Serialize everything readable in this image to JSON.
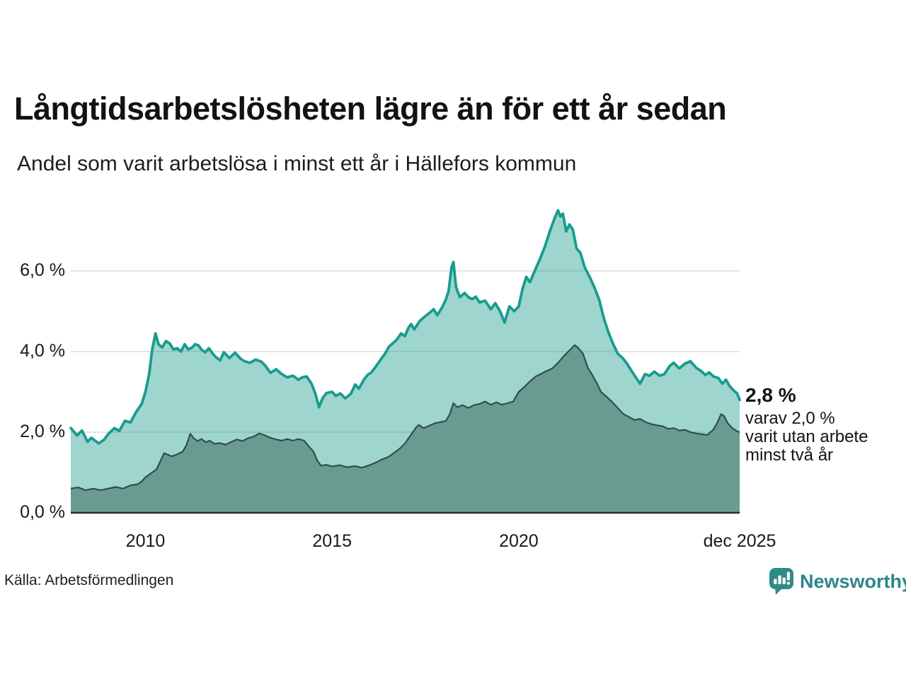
{
  "header": {
    "title": "Långtidsarbetslösheten lägre än för ett år sedan",
    "subtitle": "Andel som varit arbetslösa i minst ett år i Hällefors kommun"
  },
  "annotation": {
    "headline": "2,8 %",
    "lines": [
      "varav 2,0 %",
      "varit utan arbete",
      "minst två år"
    ]
  },
  "footer": {
    "source": "Källa: Arbetsförmedlingen",
    "brand": "Newsworthy"
  },
  "colors": {
    "accent_teal": "#189C8E",
    "area_light": "rgba(26,154,140,0.42)",
    "area_dark": "#6A9B91",
    "line_dark": "#2F4F49",
    "grid": "#DBDBDB",
    "axis": "#2D2D2D",
    "brand_teal": "#2E858C",
    "logo_teal": "#2E8C85"
  },
  "chart_data": {
    "type": "area",
    "title": "Långtidsarbetslösheten lägre än för ett år sedan",
    "subtitle": "Andel som varit arbetslösa i minst ett år i Hällefors kommun",
    "xlabel": "",
    "ylabel": "",
    "legend_position": "none",
    "grid": "horizontal",
    "x_axis": {
      "range": [
        2008.0,
        2025.917
      ],
      "ticks": [
        {
          "label": "2010",
          "t": 2010
        },
        {
          "label": "2015",
          "t": 2015
        },
        {
          "label": "2020",
          "t": 2020
        },
        {
          "label": "dec 2025",
          "t": 2025.917
        }
      ]
    },
    "y_axis": {
      "range": [
        0,
        7.6
      ],
      "unit": "%",
      "ticks": [
        {
          "label": "0,0 %",
          "v": 0
        },
        {
          "label": "2,0 %",
          "v": 2
        },
        {
          "label": "4,0 %",
          "v": 4
        },
        {
          "label": "6,0 %",
          "v": 6
        }
      ]
    },
    "series": [
      {
        "id": "total",
        "name": "Arbetslösa minst ett år",
        "end_value_label": "2,8 %",
        "end_value": 2.8,
        "points": [
          [
            2008.0,
            2.1
          ],
          [
            2008.17,
            1.92
          ],
          [
            2008.3,
            2.04
          ],
          [
            2008.45,
            1.76
          ],
          [
            2008.55,
            1.86
          ],
          [
            2008.75,
            1.72
          ],
          [
            2008.9,
            1.82
          ],
          [
            2009.0,
            1.95
          ],
          [
            2009.17,
            2.1
          ],
          [
            2009.3,
            2.03
          ],
          [
            2009.45,
            2.28
          ],
          [
            2009.6,
            2.24
          ],
          [
            2009.75,
            2.5
          ],
          [
            2009.9,
            2.7
          ],
          [
            2010.0,
            3.0
          ],
          [
            2010.1,
            3.45
          ],
          [
            2010.18,
            4.05
          ],
          [
            2010.27,
            4.45
          ],
          [
            2010.35,
            4.18
          ],
          [
            2010.45,
            4.1
          ],
          [
            2010.55,
            4.26
          ],
          [
            2010.65,
            4.2
          ],
          [
            2010.75,
            4.05
          ],
          [
            2010.85,
            4.08
          ],
          [
            2010.95,
            4.0
          ],
          [
            2011.05,
            4.18
          ],
          [
            2011.15,
            4.05
          ],
          [
            2011.25,
            4.1
          ],
          [
            2011.33,
            4.18
          ],
          [
            2011.42,
            4.15
          ],
          [
            2011.5,
            4.05
          ],
          [
            2011.6,
            3.98
          ],
          [
            2011.7,
            4.08
          ],
          [
            2011.8,
            3.95
          ],
          [
            2011.9,
            3.85
          ],
          [
            2012.0,
            3.78
          ],
          [
            2012.1,
            3.98
          ],
          [
            2012.25,
            3.84
          ],
          [
            2012.4,
            3.97
          ],
          [
            2012.55,
            3.82
          ],
          [
            2012.65,
            3.76
          ],
          [
            2012.8,
            3.72
          ],
          [
            2012.95,
            3.8
          ],
          [
            2013.1,
            3.75
          ],
          [
            2013.2,
            3.66
          ],
          [
            2013.35,
            3.47
          ],
          [
            2013.5,
            3.56
          ],
          [
            2013.65,
            3.44
          ],
          [
            2013.8,
            3.36
          ],
          [
            2013.95,
            3.4
          ],
          [
            2014.1,
            3.3
          ],
          [
            2014.2,
            3.36
          ],
          [
            2014.32,
            3.38
          ],
          [
            2014.45,
            3.2
          ],
          [
            2014.55,
            2.96
          ],
          [
            2014.65,
            2.62
          ],
          [
            2014.75,
            2.85
          ],
          [
            2014.85,
            2.97
          ],
          [
            2015.0,
            3.0
          ],
          [
            2015.1,
            2.9
          ],
          [
            2015.22,
            2.96
          ],
          [
            2015.35,
            2.84
          ],
          [
            2015.5,
            2.95
          ],
          [
            2015.62,
            3.18
          ],
          [
            2015.72,
            3.08
          ],
          [
            2015.85,
            3.3
          ],
          [
            2015.95,
            3.42
          ],
          [
            2016.05,
            3.48
          ],
          [
            2016.15,
            3.6
          ],
          [
            2016.3,
            3.8
          ],
          [
            2016.42,
            3.95
          ],
          [
            2016.52,
            4.12
          ],
          [
            2016.62,
            4.2
          ],
          [
            2016.72,
            4.28
          ],
          [
            2016.85,
            4.45
          ],
          [
            2016.95,
            4.38
          ],
          [
            2017.05,
            4.6
          ],
          [
            2017.12,
            4.68
          ],
          [
            2017.2,
            4.55
          ],
          [
            2017.35,
            4.76
          ],
          [
            2017.5,
            4.88
          ],
          [
            2017.6,
            4.95
          ],
          [
            2017.72,
            5.05
          ],
          [
            2017.82,
            4.9
          ],
          [
            2017.95,
            5.1
          ],
          [
            2018.05,
            5.3
          ],
          [
            2018.12,
            5.5
          ],
          [
            2018.2,
            6.1
          ],
          [
            2018.25,
            6.22
          ],
          [
            2018.32,
            5.6
          ],
          [
            2018.42,
            5.35
          ],
          [
            2018.55,
            5.45
          ],
          [
            2018.65,
            5.35
          ],
          [
            2018.75,
            5.3
          ],
          [
            2018.85,
            5.36
          ],
          [
            2018.95,
            5.22
          ],
          [
            2019.1,
            5.26
          ],
          [
            2019.25,
            5.05
          ],
          [
            2019.37,
            5.2
          ],
          [
            2019.5,
            5.0
          ],
          [
            2019.62,
            4.72
          ],
          [
            2019.75,
            5.12
          ],
          [
            2019.88,
            5.0
          ],
          [
            2020.0,
            5.12
          ],
          [
            2020.1,
            5.55
          ],
          [
            2020.2,
            5.85
          ],
          [
            2020.3,
            5.72
          ],
          [
            2020.45,
            6.05
          ],
          [
            2020.57,
            6.3
          ],
          [
            2020.7,
            6.6
          ],
          [
            2020.82,
            6.95
          ],
          [
            2020.95,
            7.28
          ],
          [
            2021.05,
            7.5
          ],
          [
            2021.12,
            7.35
          ],
          [
            2021.18,
            7.42
          ],
          [
            2021.27,
            6.98
          ],
          [
            2021.36,
            7.15
          ],
          [
            2021.45,
            7.02
          ],
          [
            2021.55,
            6.55
          ],
          [
            2021.65,
            6.45
          ],
          [
            2021.77,
            6.08
          ],
          [
            2021.9,
            5.85
          ],
          [
            2022.02,
            5.6
          ],
          [
            2022.15,
            5.3
          ],
          [
            2022.28,
            4.82
          ],
          [
            2022.4,
            4.48
          ],
          [
            2022.53,
            4.18
          ],
          [
            2022.65,
            3.95
          ],
          [
            2022.78,
            3.84
          ],
          [
            2022.9,
            3.7
          ],
          [
            2023.0,
            3.55
          ],
          [
            2023.12,
            3.38
          ],
          [
            2023.25,
            3.2
          ],
          [
            2023.38,
            3.44
          ],
          [
            2023.5,
            3.4
          ],
          [
            2023.63,
            3.5
          ],
          [
            2023.78,
            3.4
          ],
          [
            2023.9,
            3.44
          ],
          [
            2024.05,
            3.65
          ],
          [
            2024.15,
            3.72
          ],
          [
            2024.3,
            3.58
          ],
          [
            2024.45,
            3.7
          ],
          [
            2024.6,
            3.76
          ],
          [
            2024.75,
            3.6
          ],
          [
            2024.88,
            3.52
          ],
          [
            2025.0,
            3.42
          ],
          [
            2025.1,
            3.48
          ],
          [
            2025.22,
            3.38
          ],
          [
            2025.35,
            3.34
          ],
          [
            2025.45,
            3.2
          ],
          [
            2025.55,
            3.3
          ],
          [
            2025.65,
            3.14
          ],
          [
            2025.75,
            3.04
          ],
          [
            2025.85,
            2.96
          ],
          [
            2025.917,
            2.8
          ]
        ]
      },
      {
        "id": "two_years",
        "name": "varit utan arbete minst två år",
        "end_value_label": "2,0 %",
        "end_value": 2.0,
        "points": [
          [
            2008.0,
            0.6
          ],
          [
            2008.2,
            0.63
          ],
          [
            2008.4,
            0.56
          ],
          [
            2008.6,
            0.6
          ],
          [
            2008.8,
            0.56
          ],
          [
            2009.0,
            0.6
          ],
          [
            2009.2,
            0.64
          ],
          [
            2009.4,
            0.6
          ],
          [
            2009.6,
            0.68
          ],
          [
            2009.8,
            0.71
          ],
          [
            2009.9,
            0.78
          ],
          [
            2010.0,
            0.88
          ],
          [
            2010.15,
            0.98
          ],
          [
            2010.3,
            1.08
          ],
          [
            2010.4,
            1.28
          ],
          [
            2010.5,
            1.48
          ],
          [
            2010.6,
            1.44
          ],
          [
            2010.7,
            1.4
          ],
          [
            2010.85,
            1.45
          ],
          [
            2011.0,
            1.52
          ],
          [
            2011.1,
            1.68
          ],
          [
            2011.2,
            1.96
          ],
          [
            2011.3,
            1.84
          ],
          [
            2011.4,
            1.78
          ],
          [
            2011.5,
            1.83
          ],
          [
            2011.62,
            1.75
          ],
          [
            2011.72,
            1.79
          ],
          [
            2011.85,
            1.71
          ],
          [
            2012.0,
            1.73
          ],
          [
            2012.15,
            1.69
          ],
          [
            2012.3,
            1.76
          ],
          [
            2012.45,
            1.82
          ],
          [
            2012.6,
            1.78
          ],
          [
            2012.75,
            1.85
          ],
          [
            2012.9,
            1.89
          ],
          [
            2013.05,
            1.97
          ],
          [
            2013.2,
            1.92
          ],
          [
            2013.35,
            1.86
          ],
          [
            2013.5,
            1.82
          ],
          [
            2013.65,
            1.79
          ],
          [
            2013.8,
            1.83
          ],
          [
            2013.95,
            1.79
          ],
          [
            2014.1,
            1.83
          ],
          [
            2014.25,
            1.79
          ],
          [
            2014.4,
            1.62
          ],
          [
            2014.5,
            1.52
          ],
          [
            2014.6,
            1.3
          ],
          [
            2014.7,
            1.17
          ],
          [
            2014.85,
            1.19
          ],
          [
            2015.0,
            1.15
          ],
          [
            2015.2,
            1.18
          ],
          [
            2015.4,
            1.13
          ],
          [
            2015.6,
            1.16
          ],
          [
            2015.8,
            1.12
          ],
          [
            2016.0,
            1.18
          ],
          [
            2016.2,
            1.26
          ],
          [
            2016.35,
            1.33
          ],
          [
            2016.5,
            1.38
          ],
          [
            2016.65,
            1.48
          ],
          [
            2016.8,
            1.58
          ],
          [
            2016.95,
            1.72
          ],
          [
            2017.1,
            1.92
          ],
          [
            2017.25,
            2.12
          ],
          [
            2017.32,
            2.18
          ],
          [
            2017.45,
            2.1
          ],
          [
            2017.6,
            2.16
          ],
          [
            2017.75,
            2.22
          ],
          [
            2017.9,
            2.25
          ],
          [
            2018.05,
            2.28
          ],
          [
            2018.15,
            2.44
          ],
          [
            2018.25,
            2.72
          ],
          [
            2018.35,
            2.62
          ],
          [
            2018.5,
            2.67
          ],
          [
            2018.65,
            2.6
          ],
          [
            2018.8,
            2.67
          ],
          [
            2018.95,
            2.7
          ],
          [
            2019.1,
            2.76
          ],
          [
            2019.25,
            2.68
          ],
          [
            2019.4,
            2.74
          ],
          [
            2019.55,
            2.68
          ],
          [
            2019.7,
            2.72
          ],
          [
            2019.85,
            2.76
          ],
          [
            2020.0,
            3.0
          ],
          [
            2020.15,
            3.12
          ],
          [
            2020.3,
            3.26
          ],
          [
            2020.45,
            3.38
          ],
          [
            2020.6,
            3.45
          ],
          [
            2020.75,
            3.52
          ],
          [
            2020.9,
            3.58
          ],
          [
            2021.05,
            3.72
          ],
          [
            2021.2,
            3.88
          ],
          [
            2021.35,
            4.02
          ],
          [
            2021.5,
            4.16
          ],
          [
            2021.6,
            4.08
          ],
          [
            2021.72,
            3.95
          ],
          [
            2021.85,
            3.6
          ],
          [
            2021.95,
            3.45
          ],
          [
            2022.1,
            3.2
          ],
          [
            2022.2,
            3.0
          ],
          [
            2022.35,
            2.88
          ],
          [
            2022.5,
            2.75
          ],
          [
            2022.65,
            2.6
          ],
          [
            2022.8,
            2.45
          ],
          [
            2022.95,
            2.38
          ],
          [
            2023.1,
            2.3
          ],
          [
            2023.25,
            2.33
          ],
          [
            2023.4,
            2.25
          ],
          [
            2023.55,
            2.2
          ],
          [
            2023.7,
            2.17
          ],
          [
            2023.85,
            2.15
          ],
          [
            2024.0,
            2.08
          ],
          [
            2024.15,
            2.1
          ],
          [
            2024.3,
            2.04
          ],
          [
            2024.45,
            2.06
          ],
          [
            2024.6,
            2.0
          ],
          [
            2024.75,
            1.97
          ],
          [
            2024.9,
            1.95
          ],
          [
            2025.05,
            1.93
          ],
          [
            2025.2,
            2.05
          ],
          [
            2025.3,
            2.2
          ],
          [
            2025.42,
            2.45
          ],
          [
            2025.5,
            2.4
          ],
          [
            2025.6,
            2.22
          ],
          [
            2025.72,
            2.1
          ],
          [
            2025.83,
            2.03
          ],
          [
            2025.917,
            2.0
          ]
        ]
      }
    ]
  }
}
